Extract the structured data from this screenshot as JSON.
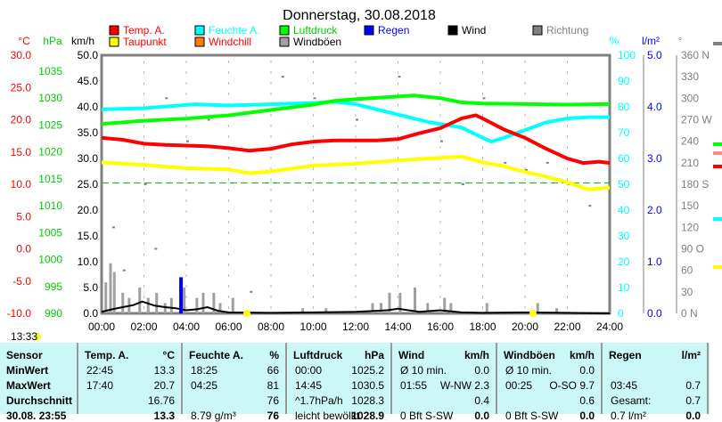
{
  "title": "Donnerstag, 30.08.2018",
  "legend": [
    {
      "label": "Temp. A.",
      "color": "#ff0000",
      "text_color": "#ff0000"
    },
    {
      "label": "Feuchte A.",
      "color": "#00ffff",
      "text_color": "#00ffff"
    },
    {
      "label": "Luftdruck",
      "color": "#00ff00",
      "text_color": "#00cc00"
    },
    {
      "label": "Regen",
      "color": "#0000ff",
      "text_color": "#0000ff"
    },
    {
      "label": "Wind",
      "color": "#000000",
      "text_color": "#000000"
    },
    {
      "label": "Richtung",
      "color": "#808080",
      "text_color": "#808080"
    },
    {
      "label": "Taupunkt",
      "color": "#ffff00",
      "text_color": "#ff0000"
    },
    {
      "label": "Windchill",
      "color": "#ff8000",
      "text_color": "#ff0000"
    },
    {
      "label": "Windböen",
      "color": "#a0a0a0",
      "text_color": "#000000"
    }
  ],
  "axes": {
    "temp_unit": "°C",
    "hpa_unit": "hPa",
    "kmh_unit": "km/h",
    "pct_unit": "%",
    "rain_unit": "l/m²",
    "dir_unit": "°",
    "temp_ticks": [
      "30.0",
      "25.0",
      "20.0",
      "15.0",
      "10.0",
      "5.0",
      "0.0",
      "-5.0",
      "-10.0"
    ],
    "hpa_ticks": [
      "1035",
      "1030",
      "1025",
      "1020",
      "1015",
      "1010",
      "1005",
      "1000",
      "995",
      "990"
    ],
    "kmh_ticks": [
      "50.0",
      "45.0",
      "40.0",
      "35.0",
      "30.0",
      "25.0",
      "20.0",
      "15.0",
      "10.0",
      "5.0",
      "0.0"
    ],
    "pct_ticks": [
      "100",
      "90",
      "80",
      "70",
      "60",
      "50",
      "40",
      "30",
      "20",
      "10",
      "0"
    ],
    "rain_ticks": [
      "5.0",
      "4.0",
      "3.0",
      "2.0",
      "1.0",
      "0.0"
    ],
    "dir_ticks": [
      "360 N",
      "330",
      "300",
      "270 W",
      "240",
      "210",
      "180 S",
      "150",
      "120",
      "90  O",
      "60",
      "30",
      "0    N"
    ],
    "x_ticks": [
      "00:00",
      "02:00",
      "04:00",
      "06:00",
      "08:00",
      "10:00",
      "12:00",
      "14:00",
      "16:00",
      "18:00",
      "20:00",
      "22:00",
      "24:00"
    ]
  },
  "sunrise_label": "13:33",
  "chart_data": {
    "type": "line",
    "x_unit": "hour",
    "xlim": [
      0,
      24
    ],
    "series": [
      {
        "name": "Temp. A.",
        "unit": "°C",
        "x": [
          0,
          1,
          2,
          3,
          4,
          5,
          6,
          7,
          8,
          9,
          10,
          11,
          12,
          13,
          14,
          15,
          16,
          17,
          17.67,
          18,
          19,
          20,
          21,
          22,
          22.75,
          23.5,
          24
        ],
        "y": [
          17.2,
          16.9,
          16.3,
          16.1,
          16.0,
          15.9,
          15.6,
          15.2,
          15.5,
          16.2,
          16.6,
          16.8,
          16.8,
          16.8,
          17.0,
          17.9,
          18.7,
          20.2,
          20.7,
          20.2,
          18.5,
          17.2,
          15.5,
          14.0,
          13.3,
          13.5,
          13.3
        ]
      },
      {
        "name": "Taupunkt",
        "unit": "°C",
        "x": [
          0,
          2,
          4,
          6,
          7,
          8,
          10,
          12,
          14,
          16,
          17,
          18,
          19,
          20,
          21,
          22,
          23,
          24
        ],
        "y": [
          13.4,
          13.0,
          12.5,
          12.3,
          11.7,
          12.0,
          12.9,
          13.2,
          13.7,
          14.1,
          14.3,
          13.4,
          12.8,
          11.9,
          11.2,
          10.3,
          9.2,
          9.5
        ]
      },
      {
        "name": "Feuchte A.",
        "unit": "%",
        "x": [
          0,
          2,
          4.42,
          6,
          8,
          10,
          11,
          12,
          14,
          15.5,
          17,
          18,
          18.42,
          19,
          20,
          21,
          22,
          23,
          24
        ],
        "y": [
          79,
          79.5,
          81,
          80.5,
          81,
          81.5,
          82,
          81,
          77,
          74,
          72,
          68,
          66.5,
          68,
          71,
          74,
          75.5,
          76,
          76
        ]
      },
      {
        "name": "Luftdruck",
        "unit": "hPa",
        "x": [
          0,
          2,
          4,
          6,
          8,
          10,
          11,
          12,
          14,
          14.75,
          16,
          17,
          18,
          20,
          22,
          24
        ],
        "y": [
          1025.2,
          1025.8,
          1026.2,
          1026.8,
          1027.8,
          1028.8,
          1029.5,
          1029.8,
          1030.3,
          1030.5,
          1030.0,
          1029.2,
          1029.0,
          1028.9,
          1028.8,
          1028.9
        ]
      },
      {
        "name": "Wind",
        "unit": "km/h",
        "x": [
          0,
          0.5,
          1,
          1.5,
          1.92,
          2.5,
          3,
          3.5,
          4,
          4.5,
          5,
          5.5,
          6,
          8,
          10,
          12,
          13.5,
          14,
          15,
          16,
          17,
          18,
          20,
          22,
          24
        ],
        "y": [
          0.3,
          0.8,
          1.2,
          1.6,
          2.3,
          1.5,
          1.2,
          1.0,
          0.6,
          0.8,
          1.2,
          0.5,
          0.2,
          0.1,
          0.2,
          0.3,
          0.6,
          0.9,
          0.3,
          0.6,
          0.2,
          0.1,
          0.2,
          0.1,
          0
        ]
      },
      {
        "name": "Windböen",
        "unit": "km/h",
        "x": [
          0.2,
          0.42,
          0.6,
          1,
          1.3,
          1.8,
          2.2,
          2.6,
          3,
          3.3,
          3.9,
          4.5,
          4.8,
          5.3,
          5.6,
          6.2,
          9.5,
          10.6,
          12.8,
          13.2,
          13.6,
          14.1,
          14.8,
          15.4,
          16.2,
          16.5,
          18.2,
          20.6,
          21.5
        ],
        "y": [
          6,
          9.7,
          8,
          4,
          3,
          5,
          3,
          4,
          2,
          3,
          5,
          3,
          4,
          4,
          2,
          3,
          1,
          1,
          2,
          2,
          4,
          4,
          5,
          2,
          3,
          2,
          2,
          2,
          1
        ]
      },
      {
        "name": "Regen",
        "unit": "l/m²",
        "x": [
          3.75
        ],
        "y": [
          0.7
        ]
      },
      {
        "name": "Richtung",
        "unit": "°",
        "x": [
          0.5,
          1,
          1.5,
          2,
          2.5,
          3,
          4,
          5,
          6,
          7,
          8.5,
          10,
          11,
          12,
          13,
          14,
          15,
          16,
          17,
          18,
          19,
          20,
          21,
          22,
          23,
          23.5
        ],
        "y": [
          120,
          60,
          240,
          180,
          90,
          300,
          240,
          270,
          200,
          30,
          330,
          300,
          240,
          270,
          300,
          330,
          270,
          240,
          180,
          300,
          210,
          200,
          210,
          180,
          150,
          210
        ]
      },
      {
        "name": "Reference",
        "unit": "°C",
        "dashed": true,
        "x": [
          0,
          24
        ],
        "y": [
          10.2,
          10.2
        ]
      }
    ]
  },
  "table": {
    "headers": [
      [
        "Sensor",
        ""
      ],
      [
        "Temp. A.",
        "°C"
      ],
      [
        "Feuchte A.",
        "%"
      ],
      [
        "Luftdruck",
        "hPa"
      ],
      [
        "Wind",
        "km/h"
      ],
      [
        "Windböen",
        "km/h"
      ],
      [
        "Regen",
        "l/m²"
      ]
    ],
    "rows": [
      {
        "label": "MinWert",
        "cells": [
          [
            "22:45",
            "13.3"
          ],
          [
            "18:25",
            "66"
          ],
          [
            "00:00",
            "1025.2"
          ],
          [
            "Ø 10 min.",
            "0.0"
          ],
          [
            "Ø 10 min.",
            "0.0"
          ],
          [
            "",
            ""
          ]
        ]
      },
      {
        "label": "MaxWert",
        "cells": [
          [
            "17:40",
            "20.7"
          ],
          [
            "04:25",
            "81"
          ],
          [
            "14:45",
            "1030.5"
          ],
          [
            "01:55",
            "W-NW 2.3"
          ],
          [
            "00:25",
            "O-SO 9.7"
          ],
          [
            "03:45",
            "0.7"
          ]
        ]
      },
      {
        "label": "Durchschnitt",
        "cells": [
          [
            "",
            "16.76"
          ],
          [
            "",
            "76"
          ],
          [
            "^1.7hPa/h",
            "1028.3"
          ],
          [
            "",
            "0.4"
          ],
          [
            "",
            "0.6"
          ],
          [
            "Gesamt:",
            "0.7"
          ]
        ]
      },
      {
        "label": "30.08. 23:55",
        "cells": [
          [
            "",
            "13.3"
          ],
          [
            "8.79 g/m³",
            "76"
          ],
          [
            "leicht bewölkt",
            "1028.9"
          ],
          [
            "0 Bft S-SW",
            "0.0"
          ],
          [
            "0 Bft S-SW",
            "0.0"
          ],
          [
            "0.7 l/m²",
            "0.0"
          ]
        ]
      }
    ]
  }
}
